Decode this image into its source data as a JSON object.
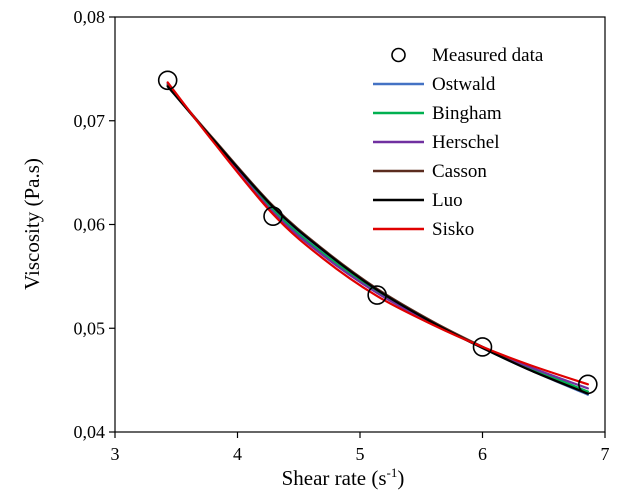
{
  "chart_data": {
    "type": "scatter",
    "title": "",
    "xlabel": "Shear rate (s",
    "xlabel_sup": "-1",
    "xlabel_end": ")",
    "ylabel": "Viscosity  (Pa.s)",
    "xlim": [
      3,
      7
    ],
    "ylim": [
      0.04,
      0.08
    ],
    "x_ticks": [
      3,
      4,
      5,
      6,
      7
    ],
    "x_tick_labels": [
      "3",
      "4",
      "5",
      "6",
      "7"
    ],
    "y_ticks": [
      0.04,
      0.05,
      0.06,
      0.07,
      0.08
    ],
    "y_tick_labels": [
      "0,04",
      "0,05",
      "0,06",
      "0,07",
      "0,08"
    ],
    "grid": false,
    "legend_position": "top-right",
    "measured": {
      "name": "Measured data",
      "x": [
        3.43,
        4.29,
        5.14,
        6.0,
        6.86
      ],
      "y": [
        0.0739,
        0.0608,
        0.0532,
        0.0482,
        0.0446
      ]
    },
    "series": [
      {
        "name": "Ostwald",
        "color": "#4472c4",
        "x": [
          3.43,
          3.8,
          4.29,
          4.7,
          5.14,
          5.6,
          6.0,
          6.4,
          6.86
        ],
        "y": [
          0.0734,
          0.0682,
          0.0616,
          0.0574,
          0.0537,
          0.0505,
          0.0481,
          0.0459,
          0.0436
        ]
      },
      {
        "name": "Bingham",
        "color": "#00b050",
        "x": [
          3.43,
          3.8,
          4.29,
          4.7,
          5.14,
          5.6,
          6.0,
          6.4,
          6.86
        ],
        "y": [
          0.0735,
          0.0681,
          0.0614,
          0.0572,
          0.0536,
          0.0505,
          0.0482,
          0.0461,
          0.0439
        ]
      },
      {
        "name": "Herschel",
        "color": "#7030a0",
        "x": [
          3.43,
          3.8,
          4.29,
          4.7,
          5.14,
          5.6,
          6.0,
          6.4,
          6.86
        ],
        "y": [
          0.0736,
          0.0681,
          0.0612,
          0.057,
          0.0534,
          0.0504,
          0.0482,
          0.0462,
          0.0442
        ]
      },
      {
        "name": "Casson",
        "color": "#5b2c1f",
        "x": [
          3.43,
          3.8,
          4.29,
          4.7,
          5.14,
          5.6,
          6.0,
          6.4,
          6.86
        ],
        "y": [
          0.0734,
          0.0683,
          0.0618,
          0.0576,
          0.0538,
          0.0506,
          0.0482,
          0.0459,
          0.0437
        ]
      },
      {
        "name": "Luo",
        "color": "#000000",
        "x": [
          3.43,
          3.8,
          4.29,
          4.7,
          5.14,
          5.6,
          6.0,
          6.4,
          6.86
        ],
        "y": [
          0.0733,
          0.0682,
          0.0617,
          0.0575,
          0.0537,
          0.0505,
          0.0481,
          0.0459,
          0.0437
        ]
      },
      {
        "name": "Sisko",
        "color": "#e00000",
        "x": [
          3.43,
          3.8,
          4.29,
          4.7,
          5.14,
          5.6,
          6.0,
          6.4,
          6.86
        ],
        "y": [
          0.0737,
          0.068,
          0.061,
          0.0567,
          0.0531,
          0.0503,
          0.0482,
          0.0464,
          0.0446
        ]
      }
    ]
  }
}
